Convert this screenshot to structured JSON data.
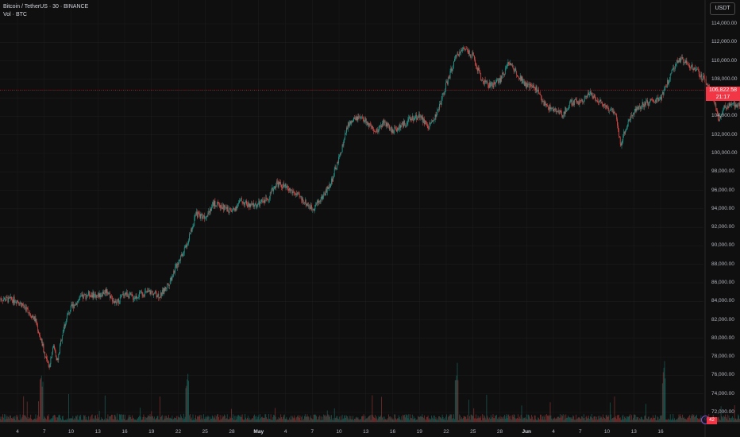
{
  "header": {
    "symbol_line": "Bitcoin / TetherUS · 30 · BINANCE",
    "volume_line": "Vol · BTC",
    "currency_button": "USDT"
  },
  "price_tag": {
    "price": "106,822.58",
    "countdown": "21:17"
  },
  "volume_tag": {
    "value": "42"
  },
  "colors": {
    "background": "#0f0f0f",
    "up": "#26a69a",
    "down": "#ef5350",
    "grid": "#1c1c1c",
    "price_line": "#f23645",
    "axis_text": "#b2b5be"
  },
  "chart_data": {
    "type": "candlestick",
    "title": "Bitcoin / TetherUS · 30 · BINANCE",
    "y_axis": {
      "ticks": [
        "114,000.00",
        "112,000.00",
        "110,000.00",
        "108,000.00",
        "106,000.00",
        "104,000.00",
        "102,000.00",
        "100,000.00",
        "98,000.00",
        "96,000.00",
        "94,000.00",
        "92,000.00",
        "90,000.00",
        "88,000.00",
        "86,000.00",
        "84,000.00",
        "82,000.00",
        "80,000.00",
        "78,000.00",
        "76,000.00",
        "74,000.00",
        "72,000.00"
      ],
      "range": [
        71000,
        115000
      ]
    },
    "x_axis": {
      "ticks": [
        {
          "label": "4"
        },
        {
          "label": "7"
        },
        {
          "label": "10"
        },
        {
          "label": "13"
        },
        {
          "label": "16"
        },
        {
          "label": "19"
        },
        {
          "label": "22"
        },
        {
          "label": "25"
        },
        {
          "label": "28"
        },
        {
          "label": "May",
          "bold": true
        },
        {
          "label": "4"
        },
        {
          "label": "7"
        },
        {
          "label": "10"
        },
        {
          "label": "13"
        },
        {
          "label": "16"
        },
        {
          "label": "19"
        },
        {
          "label": "22"
        },
        {
          "label": "25"
        },
        {
          "label": "28"
        },
        {
          "label": "Jun",
          "bold": true
        },
        {
          "label": "4"
        },
        {
          "label": "7"
        },
        {
          "label": "10"
        },
        {
          "label": "13"
        },
        {
          "label": "16"
        }
      ]
    },
    "last_price": 106822.58,
    "price_path": [
      [
        0,
        84800
      ],
      [
        2,
        84300
      ],
      [
        4,
        84100
      ],
      [
        5,
        83200
      ],
      [
        6,
        82000
      ],
      [
        7,
        78500
      ],
      [
        7.5,
        76800
      ],
      [
        8,
        79200
      ],
      [
        8.5,
        77500
      ],
      [
        9,
        80500
      ],
      [
        9.6,
        82500
      ],
      [
        10,
        83300
      ],
      [
        11,
        84300
      ],
      [
        12,
        84800
      ],
      [
        13,
        84600
      ],
      [
        14,
        85200
      ],
      [
        15,
        83700
      ],
      [
        16,
        84900
      ],
      [
        17,
        84400
      ],
      [
        18,
        84900
      ],
      [
        19,
        85000
      ],
      [
        20,
        84600
      ],
      [
        21,
        86100
      ],
      [
        22,
        88300
      ],
      [
        23,
        90300
      ],
      [
        24,
        93400
      ],
      [
        25,
        93200
      ],
      [
        26,
        94600
      ],
      [
        27,
        94200
      ],
      [
        28,
        93700
      ],
      [
        29,
        94900
      ],
      [
        30,
        94300
      ],
      [
        31,
        94500
      ],
      [
        32,
        95100
      ],
      [
        33,
        96800
      ],
      [
        34,
        96300
      ],
      [
        35,
        95700
      ],
      [
        36,
        94900
      ],
      [
        37,
        94000
      ],
      [
        38,
        95100
      ],
      [
        39,
        96600
      ],
      [
        40,
        99400
      ],
      [
        41,
        103100
      ],
      [
        42,
        103800
      ],
      [
        43,
        103500
      ],
      [
        44,
        102100
      ],
      [
        45,
        103400
      ],
      [
        46,
        102400
      ],
      [
        47,
        103000
      ],
      [
        48,
        103700
      ],
      [
        49,
        104100
      ],
      [
        50,
        102800
      ],
      [
        51,
        104400
      ],
      [
        52,
        107400
      ],
      [
        53,
        110200
      ],
      [
        54,
        111500
      ],
      [
        55,
        110500
      ],
      [
        56,
        107800
      ],
      [
        57,
        107300
      ],
      [
        58,
        107900
      ],
      [
        59,
        109800
      ],
      [
        60,
        108600
      ],
      [
        61,
        107300
      ],
      [
        62,
        107100
      ],
      [
        63,
        105300
      ],
      [
        64,
        104700
      ],
      [
        65,
        104200
      ],
      [
        66,
        105500
      ],
      [
        67,
        105600
      ],
      [
        68,
        106500
      ],
      [
        69,
        105800
      ],
      [
        70,
        104900
      ],
      [
        71,
        104500
      ],
      [
        71.5,
        100700
      ],
      [
        72,
        102500
      ],
      [
        73,
        104600
      ],
      [
        74,
        105300
      ],
      [
        75,
        105600
      ],
      [
        76,
        105900
      ],
      [
        77,
        108200
      ],
      [
        78,
        110200
      ],
      [
        79,
        109800
      ],
      [
        80,
        108900
      ],
      [
        81,
        107900
      ],
      [
        82,
        105700
      ],
      [
        82.5,
        103400
      ],
      [
        83,
        104800
      ],
      [
        84,
        105300
      ],
      [
        85,
        105200
      ],
      [
        86,
        105700
      ],
      [
        87,
        106200
      ],
      [
        88,
        107600
      ],
      [
        88.6,
        108800
      ],
      [
        89,
        106800
      ]
    ]
  }
}
